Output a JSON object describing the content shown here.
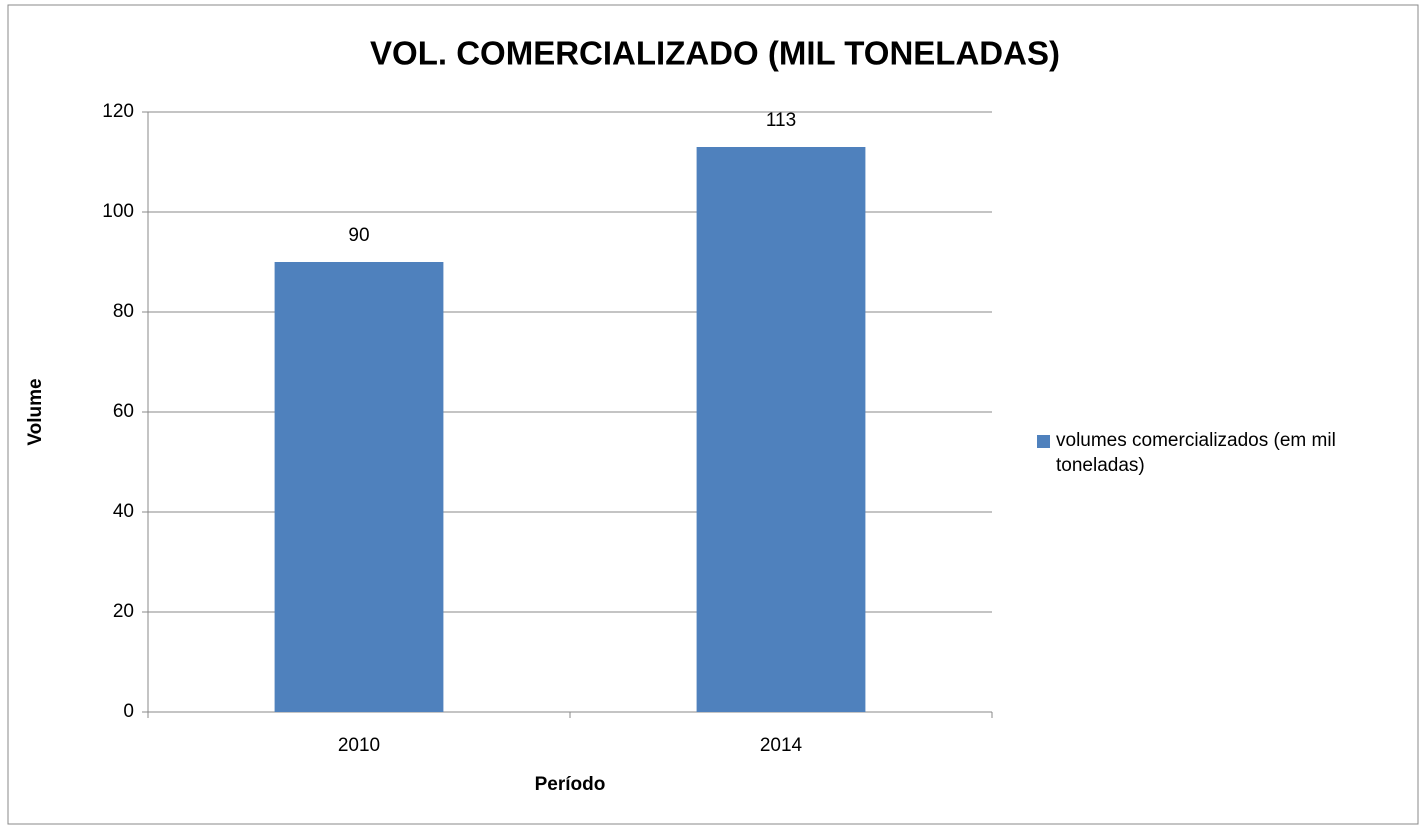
{
  "chart_data": {
    "type": "bar",
    "title": "VOL. COMERCIALIZADO (MIL TONELADAS)",
    "x_label": "Período",
    "y_label": "Volume",
    "categories": [
      "2010",
      "2014"
    ],
    "series": [
      {
        "name": "volumes comercializados (em mil toneladas)",
        "color": "#4f81bd",
        "values": [
          90,
          113
        ]
      }
    ],
    "ylim": [
      0,
      120
    ],
    "yticks": [
      0,
      20,
      40,
      60,
      80,
      100,
      120
    ],
    "grid": true,
    "legend": "right"
  }
}
